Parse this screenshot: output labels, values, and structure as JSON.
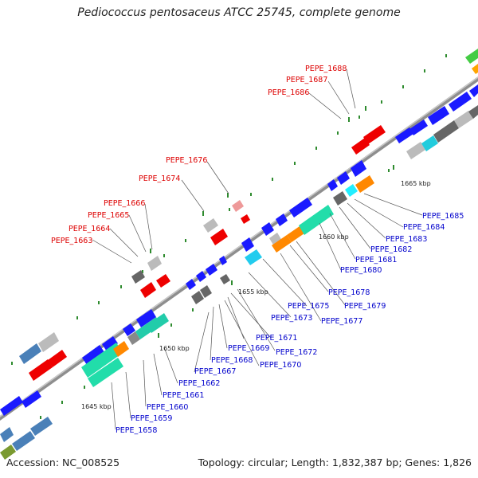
{
  "title": "Pediococcus pentosaceus ATCC 25745, complete genome",
  "footer": {
    "accession": "Accession: NC_008525",
    "summary": "Topology: circular; Length: 1,832,387 bp; Genes: 1,826"
  },
  "colors": {
    "backbone": "#999999",
    "red_label": "#dd0000",
    "blue_label": "#0000cc",
    "leader": "#555555",
    "tick_dot": "#2e8b2e"
  },
  "kbp_labels": [
    {
      "text": "1645 kbp"
    },
    {
      "text": "1650 kbp"
    },
    {
      "text": "1655 kbp"
    },
    {
      "text": "1660 kbp"
    },
    {
      "text": "1665 kbp"
    }
  ],
  "red_labels": [
    {
      "text": "PEPE_1663"
    },
    {
      "text": "PEPE_1664"
    },
    {
      "text": "PEPE_1665"
    },
    {
      "text": "PEPE_1666"
    },
    {
      "text": "PEPE_1674"
    },
    {
      "text": "PEPE_1676"
    },
    {
      "text": "PEPE_1686"
    },
    {
      "text": "PEPE_1687"
    },
    {
      "text": "PEPE_1688"
    }
  ],
  "blue_labels": [
    {
      "text": "PEPE_1658"
    },
    {
      "text": "PEPE_1659"
    },
    {
      "text": "PEPE_1660"
    },
    {
      "text": "PEPE_1661"
    },
    {
      "text": "PEPE_1662"
    },
    {
      "text": "PEPE_1667"
    },
    {
      "text": "PEPE_1668"
    },
    {
      "text": "PEPE_1669"
    },
    {
      "text": "PEPE_1670"
    },
    {
      "text": "PEPE_1671"
    },
    {
      "text": "PEPE_1672"
    },
    {
      "text": "PEPE_1673"
    },
    {
      "text": "PEPE_1675"
    },
    {
      "text": "PEPE_1677"
    },
    {
      "text": "PEPE_1678"
    },
    {
      "text": "PEPE_1679"
    },
    {
      "text": "PEPE_1680"
    },
    {
      "text": "PEPE_1681"
    },
    {
      "text": "PEPE_1682"
    },
    {
      "text": "PEPE_1683"
    },
    {
      "text": "PEPE_1684"
    },
    {
      "text": "PEPE_1685"
    }
  ]
}
